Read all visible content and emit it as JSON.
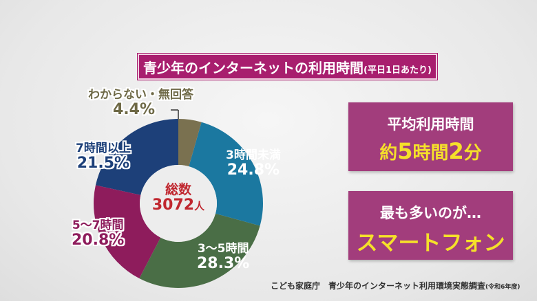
{
  "title": {
    "main": "青少年のインターネットの利用時間",
    "sub": "(平日1日あたり)"
  },
  "chart_data": {
    "type": "pie",
    "donut": true,
    "title": "青少年のインターネットの利用時間(平日1日あたり)",
    "center_label": {
      "line1": "総数",
      "value": "3072",
      "unit": "人"
    },
    "slices": [
      {
        "label": "わからない・無回答",
        "value": 4.4,
        "display": "4.4%",
        "color": "#7a7150"
      },
      {
        "label": "3時間未満",
        "value": 24.8,
        "display": "24.8%",
        "color": "#1b78a0"
      },
      {
        "label": "3〜5時間",
        "value": 28.3,
        "display": "28.3%",
        "color": "#4a6e46"
      },
      {
        "label": "5〜7時間",
        "value": 20.8,
        "display": "20.8%",
        "color": "#8e1c5c"
      },
      {
        "label": "7時間以上",
        "value": 21.5,
        "display": "21.5%",
        "color": "#1d4079"
      }
    ]
  },
  "average_box": {
    "label": "平均利用時間",
    "prefix": "約",
    "hours": "5",
    "hours_unit": "時間",
    "minutes": "2",
    "minutes_unit": "分"
  },
  "most_box": {
    "label": "最も多いのが…",
    "value": "スマートフォン"
  },
  "colors": {
    "title_bg": "#a81e6e",
    "box_bg": "#a23d7c",
    "highlight_text": "#f5e02a",
    "center_text": "#c0262e"
  },
  "source": {
    "main": "こども家庭庁　青少年のインターネット利用環境実態調査",
    "sub": "(令和6年度)"
  }
}
